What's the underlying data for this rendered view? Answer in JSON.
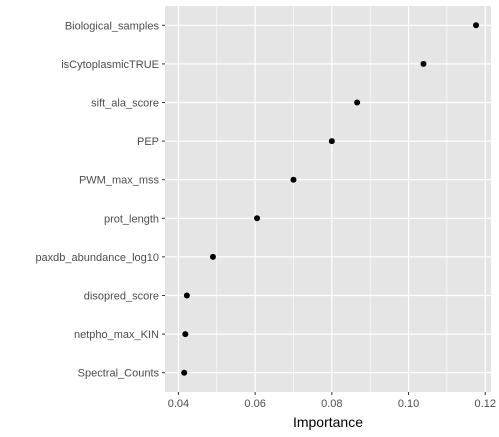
{
  "chart_data": {
    "type": "scatter",
    "title": "",
    "xlabel": "Importance",
    "ylabel": "",
    "xlim": [
      0.0365,
      0.1215
    ],
    "x_ticks": [
      0.04,
      0.06,
      0.08,
      0.1,
      0.12
    ],
    "x_tick_labels": [
      "0.04",
      "0.06",
      "0.08",
      "0.10",
      "0.12"
    ],
    "grid": true,
    "legend": "none",
    "colors": {
      "panel": "#e5e5e5",
      "grid": "#ffffff",
      "point": "#000000"
    },
    "categories": [
      "Biological_samples",
      "isCytoplasmicTRUE",
      "sift_ala_score",
      "PEP",
      "PWM_max_mss",
      "prot_length",
      "paxdb_abundance_log10",
      "disopred_score",
      "netpho_max_KIN",
      "Spectral_Counts"
    ],
    "values": [
      0.1176,
      0.1039,
      0.0866,
      0.08,
      0.07,
      0.0605,
      0.049,
      0.0422,
      0.0418,
      0.0415
    ]
  }
}
